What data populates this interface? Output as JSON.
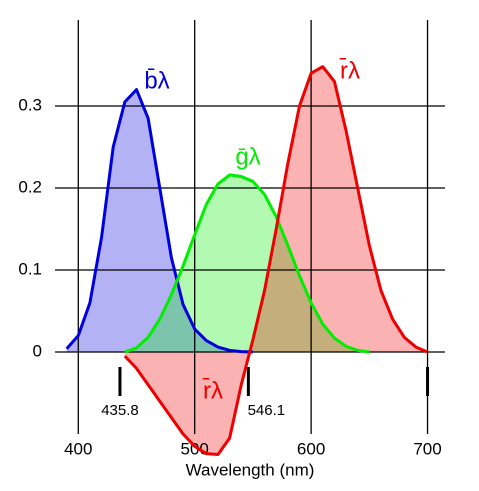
{
  "chart_data": {
    "type": "line",
    "x_label": "Wavelength (nm)",
    "x": [
      390,
      400,
      410,
      420,
      430,
      440,
      450,
      460,
      470,
      480,
      490,
      500,
      510,
      520,
      530,
      540,
      550,
      560,
      570,
      580,
      590,
      600,
      610,
      620,
      630,
      640,
      650,
      660,
      670,
      680,
      690,
      700
    ],
    "series": [
      {
        "name": "b̄λ",
        "color": "#0000dd",
        "values": [
          0.004,
          0.02,
          0.06,
          0.14,
          0.25,
          0.305,
          0.32,
          0.285,
          0.2,
          0.115,
          0.058,
          0.028,
          0.014,
          0.006,
          0.002,
          0.0005,
          0,
          null,
          null,
          null,
          null,
          null,
          null,
          null,
          null,
          null,
          null,
          null,
          null,
          null,
          null,
          null
        ]
      },
      {
        "name": "ḡλ",
        "color": "#00ee00",
        "values": [
          null,
          null,
          null,
          null,
          null,
          0,
          0.005,
          0.018,
          0.04,
          0.07,
          0.105,
          0.143,
          0.18,
          0.205,
          0.216,
          0.214,
          0.208,
          0.192,
          0.165,
          0.13,
          0.093,
          0.06,
          0.034,
          0.017,
          0.007,
          0.002,
          0,
          null,
          null,
          null,
          null,
          null
        ]
      },
      {
        "name": "r̄λ",
        "color": "#ee0000",
        "values": [
          null,
          null,
          null,
          null,
          null,
          -0.005,
          -0.02,
          -0.04,
          -0.06,
          -0.08,
          -0.1,
          -0.115,
          -0.124,
          -0.125,
          -0.105,
          -0.04,
          0.015,
          0.075,
          0.15,
          0.23,
          0.3,
          0.34,
          0.348,
          0.33,
          0.27,
          0.2,
          0.13,
          0.075,
          0.04,
          0.018,
          0.006,
          0
        ]
      }
    ],
    "primaries": [
      435.8,
      546.1,
      700
    ],
    "xlim": [
      380,
      715
    ],
    "xticks": [
      400,
      500,
      600,
      700
    ],
    "ylim": [
      -0.1,
      0.4
    ],
    "yticks": [
      0,
      0.1,
      0.2,
      0.3
    ],
    "grid": true
  }
}
